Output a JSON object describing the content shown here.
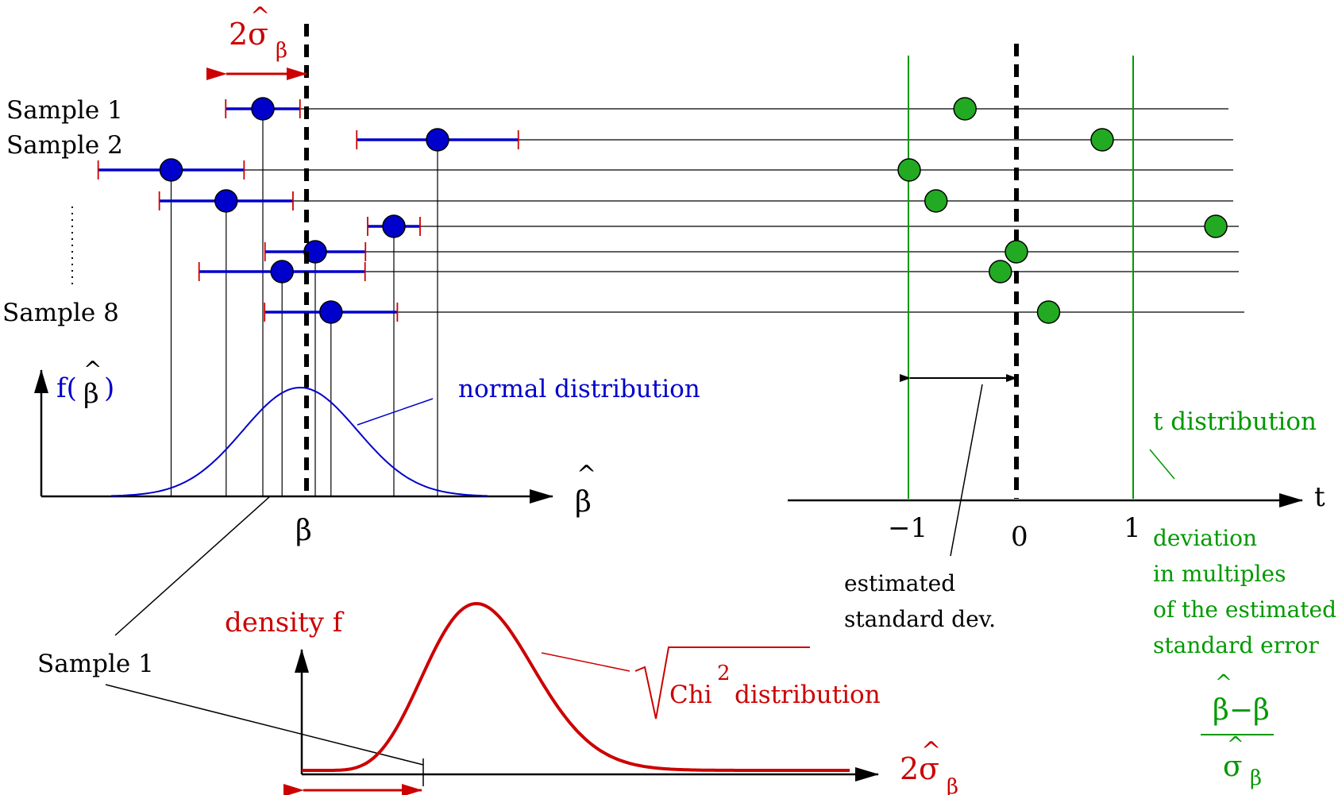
{
  "colors": {
    "blue": "#0000cc",
    "red": "#cc0000",
    "green": "#009900",
    "black": "#000000",
    "dot_blue": "#0000cc",
    "dot_green": "#22aa22"
  },
  "sample_labels": {
    "first": "Sample 1",
    "second": "Sample 2",
    "last": "Sample 8"
  },
  "top_bracket": {
    "coefficient": "2",
    "sigma": "σ",
    "hat": "^",
    "subscript": "β"
  },
  "left_panel": {
    "y_axis_label_prefix": "f(",
    "y_axis_label_beta": "β",
    "y_axis_label_hat": "^",
    "y_axis_label_suffix": ")",
    "curve_label": "normal distribution",
    "x_axis_label_beta": "β",
    "x_axis_label_hat": "^",
    "true_value_label": "β"
  },
  "right_panel": {
    "axis_label": "t",
    "ticks": [
      "−1",
      "0",
      "1"
    ],
    "est_sd_label_line1": "estimated",
    "est_sd_label_line2": "standard dev.",
    "t_dist_label": "t distribution",
    "deviation_lines": [
      "deviation",
      "in multiples",
      "of the estimated",
      "standard error"
    ],
    "fraction_num": "β−β",
    "fraction_num_hat": "^",
    "fraction_den_sigma": "σ",
    "fraction_den_hat": "^",
    "fraction_den_sub": "β"
  },
  "bottom_panel": {
    "sample_label": "Sample 1",
    "density_label": "density f",
    "chi_label_chi": "Chi",
    "chi_label_sup": "2",
    "chi_label_rest": "distribution",
    "x_coefficient": "2",
    "x_sigma": "σ",
    "x_hat": "^",
    "x_subscript": "β"
  },
  "samples": [
    {
      "beta_hat": -0.5,
      "t": -0.48
    },
    {
      "beta_hat": 1.5,
      "t": 0.8
    },
    {
      "beta_hat": -1.55,
      "t": -1.0
    },
    {
      "beta_hat": -0.92,
      "t": -0.75
    },
    {
      "beta_hat": 1.0,
      "t": 1.86
    },
    {
      "beta_hat": 0.1,
      "t": 0.0
    },
    {
      "beta_hat": -0.28,
      "t": -0.15
    },
    {
      "beta_hat": 0.28,
      "t": 0.3
    }
  ],
  "sample_half_widths": [
    0.85,
    1.85,
    1.67,
    1.53,
    0.6,
    1.15,
    1.9,
    1.52
  ]
}
